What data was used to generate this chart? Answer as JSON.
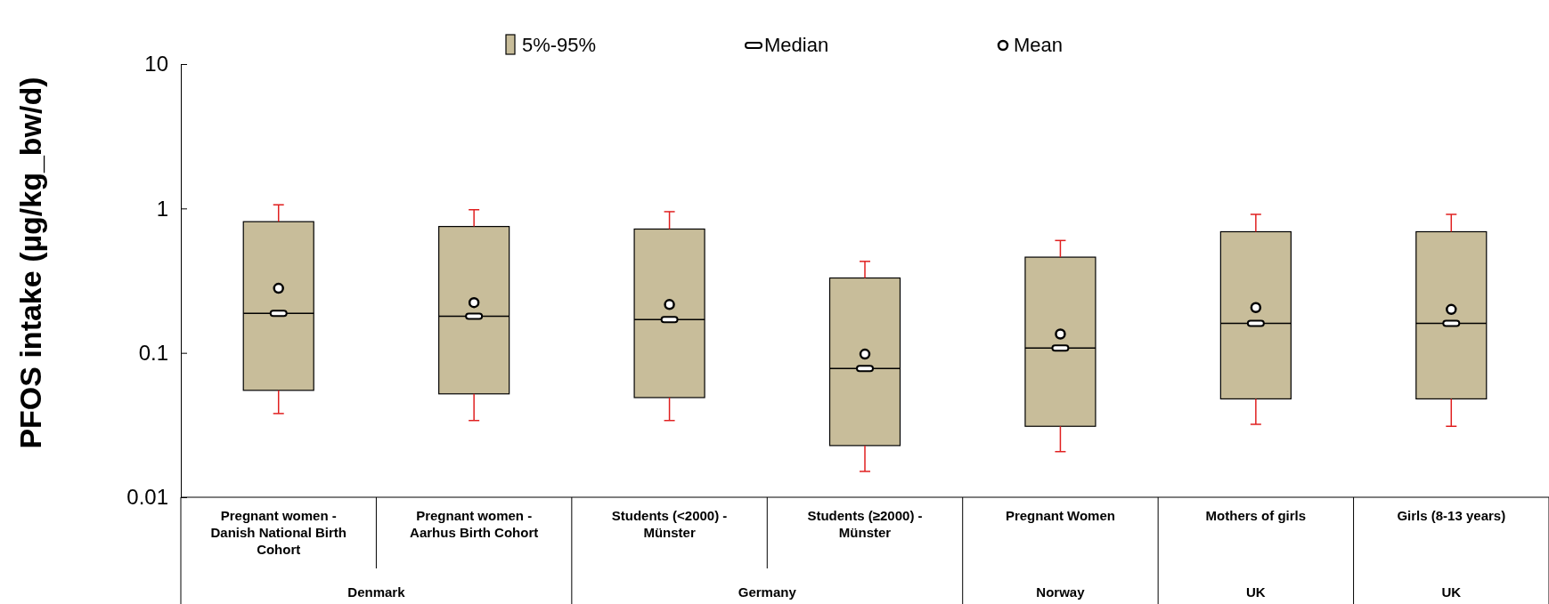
{
  "chart_data": {
    "type": "box",
    "ylabel": "PFOS intake (µg/kg_bw/d)",
    "categories": [
      "Pregnant women - Danish National Birth Cohort",
      "Pregnant women - Aarhus Birth Cohort",
      "Students (<2000) - Münster",
      "Students (≥2000)  - Münster",
      "Pregnant Women",
      "Mothers of girls",
      "Girls (8-13 years)"
    ],
    "annotations": [
      "Denmark",
      "Germany",
      "Norway",
      "UK",
      "UK"
    ],
    "log": true,
    "ylim": [
      0.01,
      10
    ],
    "yticks": [
      0.01,
      0.1,
      1,
      10
    ],
    "grid": false,
    "legend": "top",
    "series": [
      {
        "name": "5%-95%",
        "color": "#c8bd9a",
        "boxes": [
          {
            "low": 0.038,
            "q1": 0.055,
            "median": 0.188,
            "q3": 0.81,
            "high": 1.06
          },
          {
            "low": 0.034,
            "q1": 0.052,
            "median": 0.179,
            "q3": 0.75,
            "high": 0.98
          },
          {
            "low": 0.034,
            "q1": 0.049,
            "median": 0.17,
            "q3": 0.72,
            "high": 0.95
          },
          {
            "low": 0.0151,
            "q1": 0.0228,
            "median": 0.078,
            "q3": 0.33,
            "high": 0.43
          },
          {
            "low": 0.0207,
            "q1": 0.031,
            "median": 0.108,
            "q3": 0.46,
            "high": 0.6
          },
          {
            "low": 0.032,
            "q1": 0.048,
            "median": 0.16,
            "q3": 0.69,
            "high": 0.91
          },
          {
            "low": 0.031,
            "q1": 0.048,
            "median": 0.16,
            "q3": 0.69,
            "high": 0.91
          }
        ]
      },
      {
        "type": "scatter",
        "name": "Median",
        "color": "#000000",
        "marker": "square",
        "values": [
          0.188,
          0.179,
          0.17,
          0.078,
          0.108,
          0.16,
          0.16
        ]
      },
      {
        "type": "scatter",
        "name": "Mean",
        "color": "#000000",
        "marker": "circle",
        "values": [
          0.28,
          0.223,
          0.216,
          0.098,
          0.135,
          0.206,
          0.2
        ]
      }
    ]
  }
}
